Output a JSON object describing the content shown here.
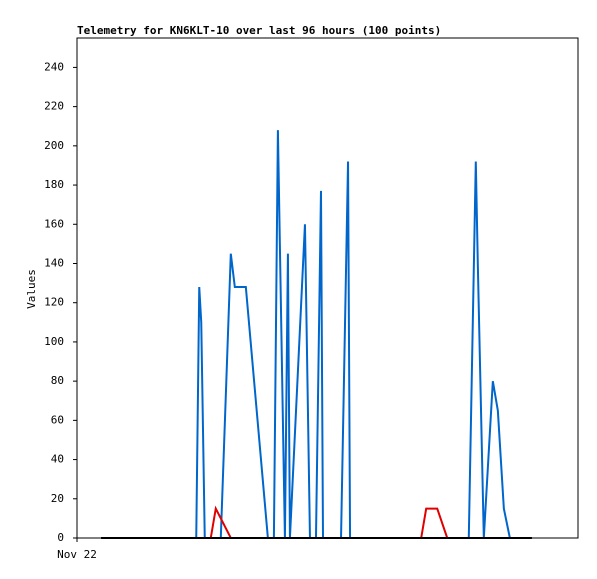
{
  "chart_data": {
    "type": "line",
    "title": "Telemetry for KN6KLT-10 over last 96 hours (100 points)",
    "y_label": "Values",
    "xlim": [
      0,
      100
    ],
    "xticks": [
      {
        "value": 0,
        "label": "Nov 22"
      }
    ],
    "ylim": [
      0,
      255
    ],
    "yticks": [
      0,
      20,
      40,
      60,
      80,
      100,
      120,
      140,
      160,
      180,
      200,
      220,
      240
    ],
    "series": [
      {
        "color": "#0066cc",
        "x": [
          23.8,
          24.4,
          24.8,
          25.5,
          28.7,
          30.7,
          31.5,
          33.7,
          38.1,
          39.3,
          40.1,
          41.5,
          42.1,
          42.5,
          45.5,
          46.5,
          47.7,
          48.7,
          49.1,
          52.7,
          54.1,
          54.5,
          78.2,
          79.6,
          80.0,
          81.2,
          83.0,
          84.0,
          85.2,
          86.4
        ],
        "values": [
          0,
          128,
          110,
          0,
          0,
          145,
          128,
          128,
          0,
          0,
          208,
          0,
          145,
          0,
          160,
          0,
          0,
          177,
          0,
          0,
          192,
          0,
          0,
          192,
          140,
          0,
          80,
          65,
          15,
          0
        ]
      },
      {
        "color": "#e00000",
        "x": [
          26.7,
          27.7,
          30.7,
          68.7,
          69.7,
          71.9,
          73.9
        ],
        "values": [
          0,
          15,
          0,
          0,
          15,
          15,
          0
        ]
      },
      {
        "color": "#000000",
        "x": [
          4.8,
          90.8
        ],
        "values": [
          0,
          0
        ]
      }
    ]
  }
}
